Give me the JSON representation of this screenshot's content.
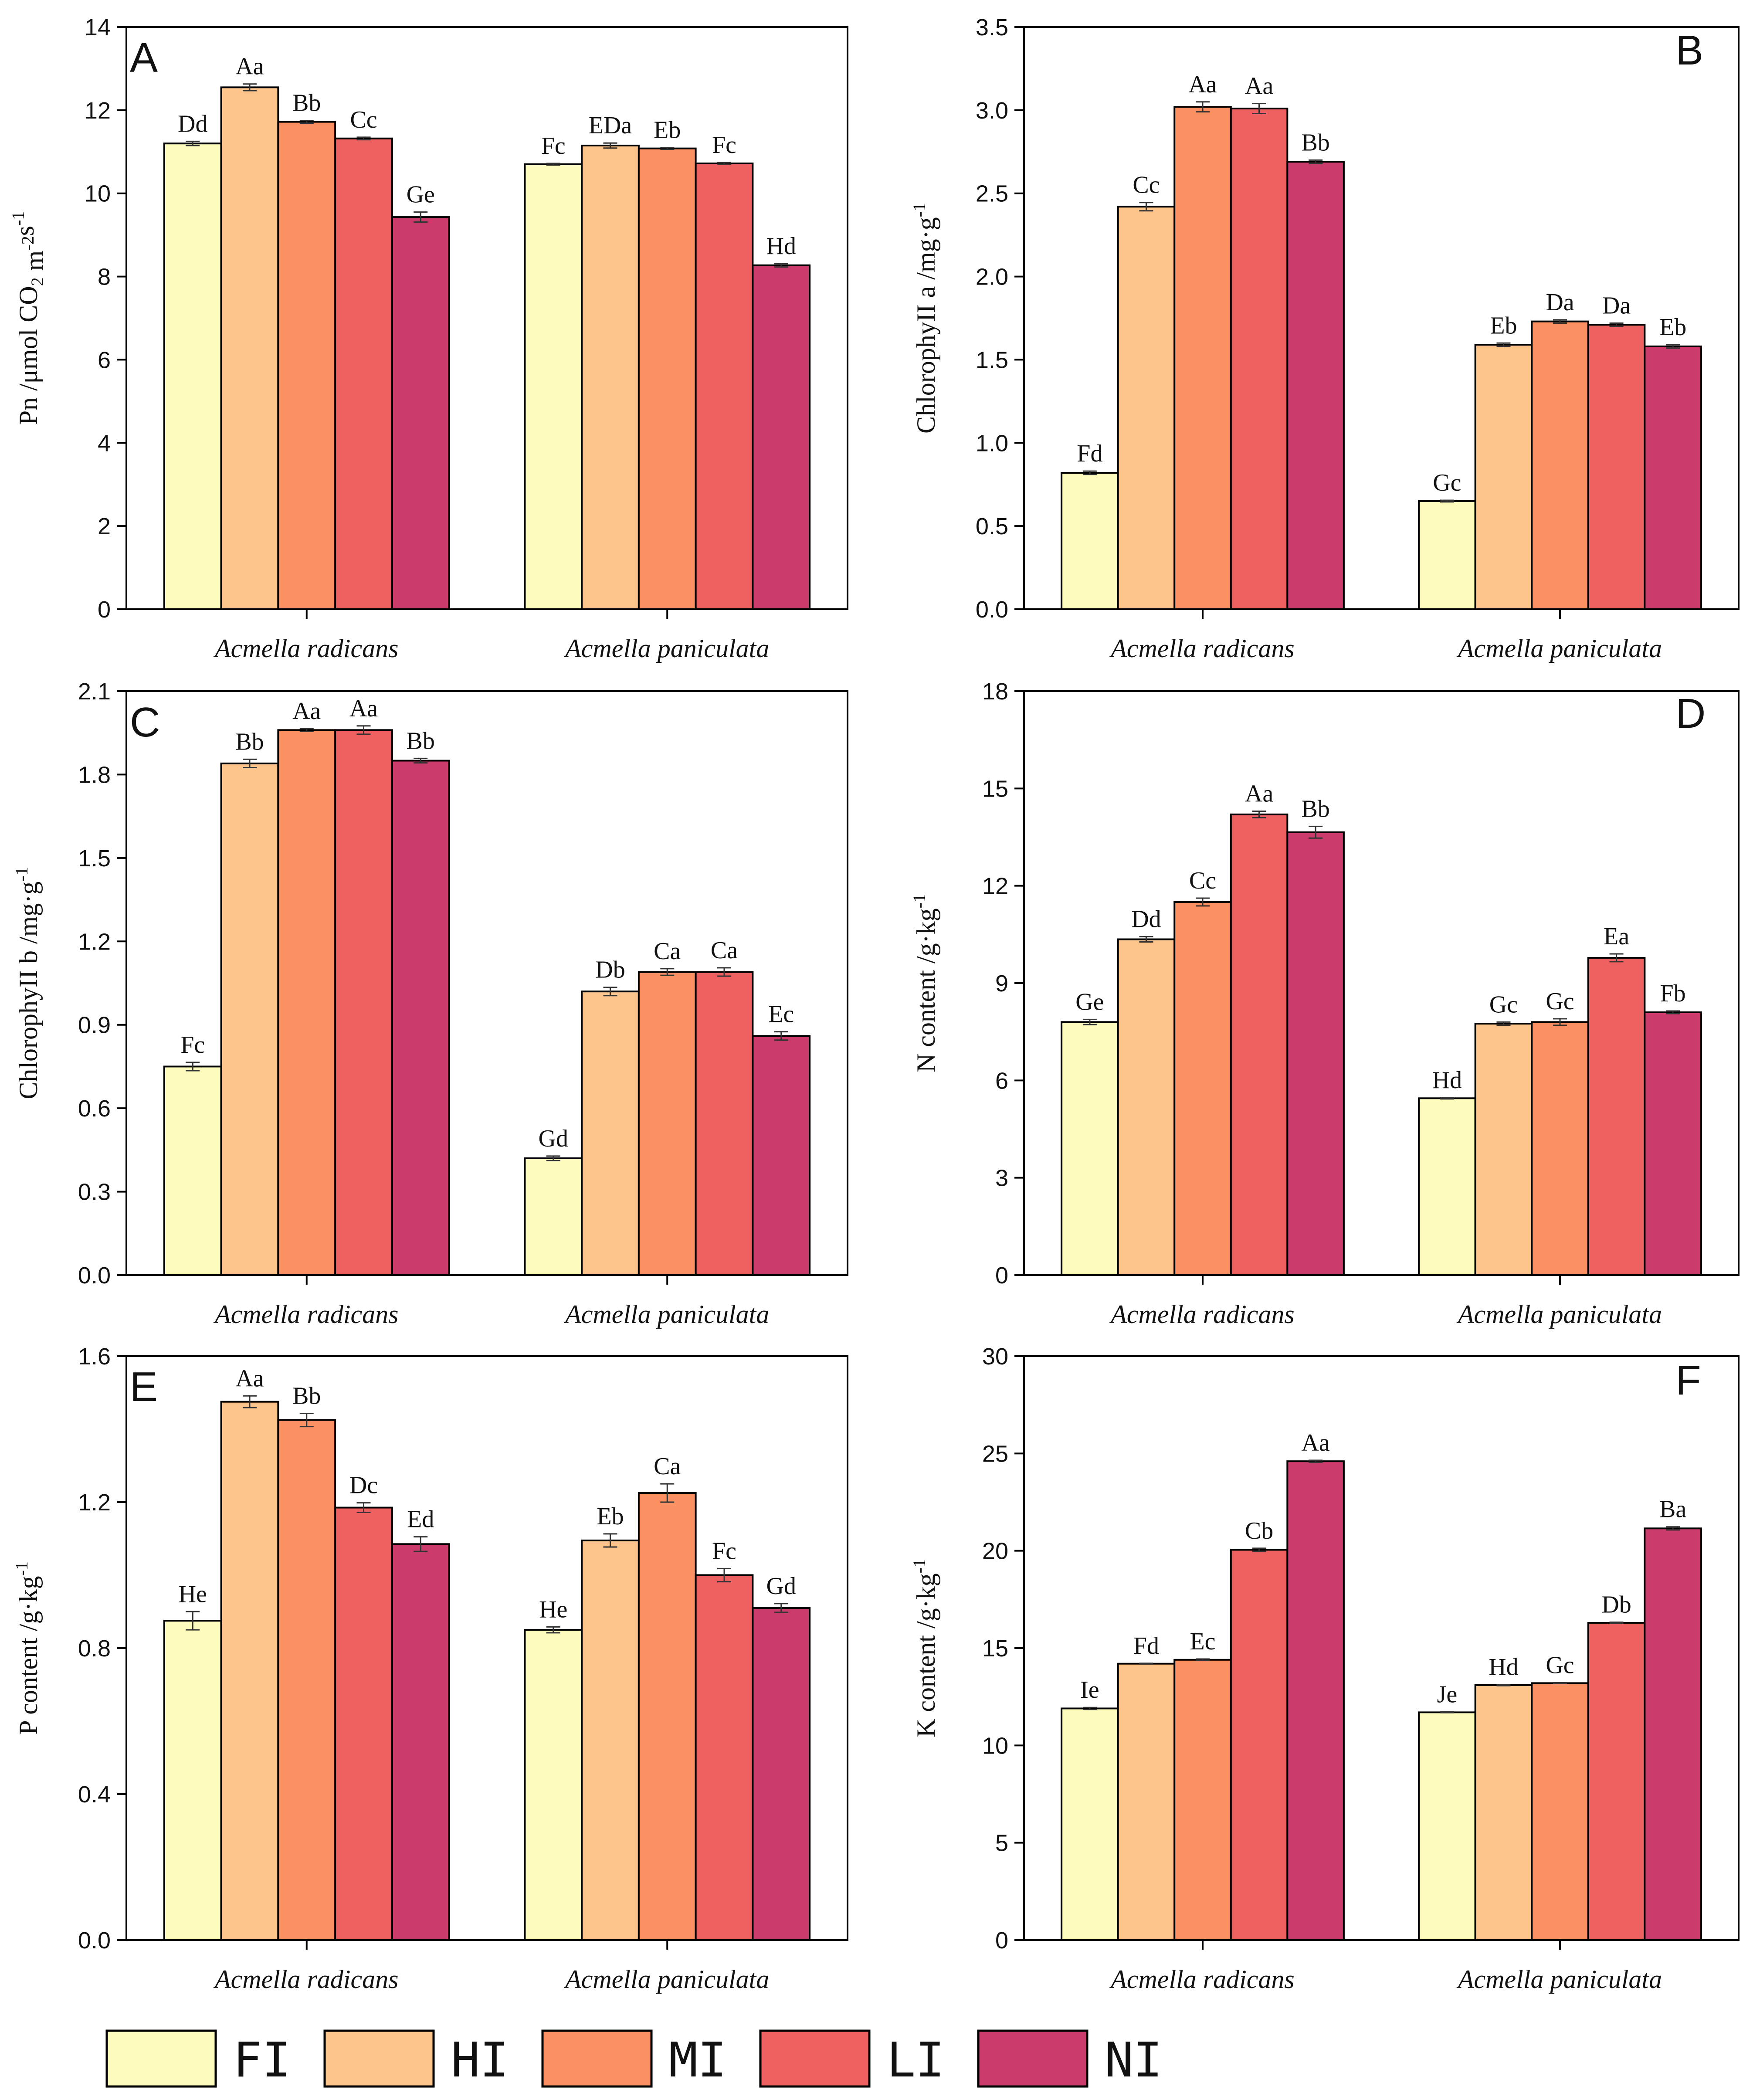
{
  "legend": [
    "FI",
    "HI",
    "MI",
    "LI",
    "NI"
  ],
  "colors": [
    "#fdfcbc",
    "#fdc58b",
    "#fb9062",
    "#ef6060",
    "#cb3b6b"
  ],
  "chart_data": [
    {
      "type": "bar",
      "panel": "A",
      "ylabel": "Pn /μmol CO₂ m⁻²s⁻¹",
      "ylabel_parts": [
        {
          "t": "Pn /μmol CO"
        },
        {
          "t": "2",
          "sub": true
        },
        {
          "t": " m"
        },
        {
          "t": "-2",
          "sup": true
        },
        {
          "t": "s"
        },
        {
          "t": "-1",
          "sup": true
        }
      ],
      "ylim": [
        0,
        14
      ],
      "yticks": [
        0,
        2,
        4,
        6,
        8,
        10,
        12,
        14
      ],
      "ytick_labels": [
        "0",
        "2",
        "4",
        "6",
        "8",
        "10",
        "12",
        "14"
      ],
      "categories": [
        "Acmella radicans",
        "Acmella paniculata"
      ],
      "series": [
        {
          "name": "FI",
          "values": [
            11.2,
            10.7
          ],
          "errors": [
            0.05,
            0.02
          ],
          "labels": [
            "Dd",
            "Fc"
          ]
        },
        {
          "name": "HI",
          "values": [
            12.55,
            11.15
          ],
          "errors": [
            0.08,
            0.06
          ],
          "labels": [
            "Aa",
            "EDa"
          ]
        },
        {
          "name": "MI",
          "values": [
            11.72,
            11.08
          ],
          "errors": [
            0.03,
            0.02
          ],
          "labels": [
            "Bb",
            "Eb"
          ]
        },
        {
          "name": "LI",
          "values": [
            11.32,
            10.72
          ],
          "errors": [
            0.03,
            0.02
          ],
          "labels": [
            "Cc",
            "Fc"
          ]
        },
        {
          "name": "NI",
          "values": [
            9.43,
            8.27
          ],
          "errors": [
            0.12,
            0.04
          ],
          "labels": [
            "Ge",
            "Hd"
          ]
        }
      ]
    },
    {
      "type": "bar",
      "panel": "B",
      "ylabel": "ChlorophyII a /mg·g⁻¹",
      "ylabel_parts": [
        {
          "t": "ChlorophyII a /mg·g"
        },
        {
          "t": "-1",
          "sup": true
        }
      ],
      "ylim": [
        0,
        3.5
      ],
      "yticks": [
        0,
        0.5,
        1,
        1.5,
        2,
        2.5,
        3,
        3.5
      ],
      "ytick_labels": [
        "0.0",
        "0.5",
        "1.0",
        "1.5",
        "2.0",
        "2.5",
        "3.0",
        "3.5"
      ],
      "categories": [
        "Acmella radicans",
        "Acmella paniculata"
      ],
      "series": [
        {
          "name": "FI",
          "values": [
            0.82,
            0.65
          ],
          "errors": [
            0.01,
            0.005
          ],
          "labels": [
            "Fd",
            "Gc"
          ]
        },
        {
          "name": "HI",
          "values": [
            2.42,
            1.59
          ],
          "errors": [
            0.025,
            0.01
          ],
          "labels": [
            "Cc",
            "Eb"
          ]
        },
        {
          "name": "MI",
          "values": [
            3.02,
            1.73
          ],
          "errors": [
            0.03,
            0.01
          ],
          "labels": [
            "Aa",
            "Da"
          ]
        },
        {
          "name": "LI",
          "values": [
            3.01,
            1.71
          ],
          "errors": [
            0.03,
            0.01
          ],
          "labels": [
            "Aa",
            "Da"
          ]
        },
        {
          "name": "NI",
          "values": [
            2.69,
            1.58
          ],
          "errors": [
            0.01,
            0.01
          ],
          "labels": [
            "Bb",
            "Eb"
          ]
        }
      ]
    },
    {
      "type": "bar",
      "panel": "C",
      "ylabel": "ChlorophyII b /mg·g⁻¹",
      "ylabel_parts": [
        {
          "t": "ChlorophyII b /mg·g"
        },
        {
          "t": "-1",
          "sup": true
        }
      ],
      "ylim": [
        0,
        2.1
      ],
      "yticks": [
        0,
        0.3,
        0.6,
        0.9,
        1.2,
        1.5,
        1.8,
        2.1
      ],
      "ytick_labels": [
        "0.0",
        "0.3",
        "0.6",
        "0.9",
        "1.2",
        "1.5",
        "1.8",
        "2.1"
      ],
      "categories": [
        "Acmella radicans",
        "Acmella paniculata"
      ],
      "series": [
        {
          "name": "FI",
          "values": [
            0.75,
            0.42
          ],
          "errors": [
            0.015,
            0.008
          ],
          "labels": [
            "Fc",
            "Gd"
          ]
        },
        {
          "name": "HI",
          "values": [
            1.84,
            1.02
          ],
          "errors": [
            0.015,
            0.015
          ],
          "labels": [
            "Bb",
            "Db"
          ]
        },
        {
          "name": "MI",
          "values": [
            1.96,
            1.09
          ],
          "errors": [
            0.005,
            0.012
          ],
          "labels": [
            "Aa",
            "Ca"
          ]
        },
        {
          "name": "LI",
          "values": [
            1.96,
            1.09
          ],
          "errors": [
            0.015,
            0.015
          ],
          "labels": [
            "Aa",
            "Ca"
          ]
        },
        {
          "name": "NI",
          "values": [
            1.85,
            0.86
          ],
          "errors": [
            0.008,
            0.015
          ],
          "labels": [
            "Bb",
            "Ec"
          ]
        }
      ]
    },
    {
      "type": "bar",
      "panel": "D",
      "ylabel": "N content /g·kg⁻¹",
      "ylabel_parts": [
        {
          "t": "N content /g·kg"
        },
        {
          "t": "-1",
          "sup": true
        }
      ],
      "ylim": [
        0,
        18
      ],
      "yticks": [
        0,
        3,
        6,
        9,
        12,
        15,
        18
      ],
      "ytick_labels": [
        "0",
        "3",
        "6",
        "9",
        "12",
        "15",
        "18"
      ],
      "categories": [
        "Acmella radicans",
        "Acmella paniculata"
      ],
      "series": [
        {
          "name": "FI",
          "values": [
            7.8,
            5.45
          ],
          "errors": [
            0.08,
            0.02
          ],
          "labels": [
            "Ge",
            "Hd"
          ]
        },
        {
          "name": "HI",
          "values": [
            10.35,
            7.75
          ],
          "errors": [
            0.08,
            0.05
          ],
          "labels": [
            "Dd",
            "Gc"
          ]
        },
        {
          "name": "MI",
          "values": [
            11.5,
            7.8
          ],
          "errors": [
            0.12,
            0.1
          ],
          "labels": [
            "Cc",
            "Gc"
          ]
        },
        {
          "name": "LI",
          "values": [
            14.2,
            9.78
          ],
          "errors": [
            0.1,
            0.12
          ],
          "labels": [
            "Aa",
            "Ea"
          ]
        },
        {
          "name": "NI",
          "values": [
            13.65,
            8.1
          ],
          "errors": [
            0.18,
            0.04
          ],
          "labels": [
            "Bb",
            "Fb"
          ]
        }
      ]
    },
    {
      "type": "bar",
      "panel": "E",
      "ylabel": "P content /g·kg⁻¹",
      "ylabel_parts": [
        {
          "t": "P content /g·kg"
        },
        {
          "t": "-1",
          "sup": true
        }
      ],
      "ylim": [
        0,
        1.6
      ],
      "yticks": [
        0,
        0.4,
        0.8,
        1.2,
        1.6
      ],
      "ytick_labels": [
        "0.0",
        "0.4",
        "0.8",
        "1.2",
        "1.6"
      ],
      "categories": [
        "Acmella radicans",
        "Acmella paniculata"
      ],
      "series": [
        {
          "name": "FI",
          "values": [
            0.875,
            0.85
          ],
          "errors": [
            0.025,
            0.008
          ],
          "labels": [
            "He",
            "He"
          ]
        },
        {
          "name": "HI",
          "values": [
            1.475,
            1.095
          ],
          "errors": [
            0.016,
            0.018
          ],
          "labels": [
            "Aa",
            "Eb"
          ]
        },
        {
          "name": "MI",
          "values": [
            1.425,
            1.225
          ],
          "errors": [
            0.018,
            0.025
          ],
          "labels": [
            "Bb",
            "Ca"
          ]
        },
        {
          "name": "LI",
          "values": [
            1.185,
            1.0
          ],
          "errors": [
            0.013,
            0.018
          ],
          "labels": [
            "Dc",
            "Fc"
          ]
        },
        {
          "name": "NI",
          "values": [
            1.085,
            0.91
          ],
          "errors": [
            0.02,
            0.012
          ],
          "labels": [
            "Ed",
            "Gd"
          ]
        }
      ]
    },
    {
      "type": "bar",
      "panel": "F",
      "ylabel": "K content /g·kg⁻¹",
      "ylabel_parts": [
        {
          "t": "K content /g·kg"
        },
        {
          "t": "-1",
          "sup": true
        }
      ],
      "ylim": [
        0,
        30
      ],
      "yticks": [
        0,
        5,
        10,
        15,
        20,
        25,
        30
      ],
      "ytick_labels": [
        "0",
        "5",
        "10",
        "15",
        "20",
        "25",
        "30"
      ],
      "categories": [
        "Acmella radicans",
        "Acmella paniculata"
      ],
      "series": [
        {
          "name": "FI",
          "values": [
            11.9,
            11.7
          ],
          "errors": [
            0.05,
            0.02
          ],
          "labels": [
            "Ie",
            "Je"
          ]
        },
        {
          "name": "HI",
          "values": [
            14.2,
            13.1
          ],
          "errors": [
            0.02,
            0.03
          ],
          "labels": [
            "Fd",
            "Hd"
          ]
        },
        {
          "name": "MI",
          "values": [
            14.4,
            13.2
          ],
          "errors": [
            0.04,
            0.02
          ],
          "labels": [
            "Ec",
            "Gc"
          ]
        },
        {
          "name": "LI",
          "values": [
            20.05,
            16.3
          ],
          "errors": [
            0.08,
            0.03
          ],
          "labels": [
            "Cb",
            "Db"
          ]
        },
        {
          "name": "NI",
          "values": [
            24.6,
            21.15
          ],
          "errors": [
            0.05,
            0.08
          ],
          "labels": [
            "Aa",
            "Ba"
          ]
        }
      ]
    }
  ]
}
